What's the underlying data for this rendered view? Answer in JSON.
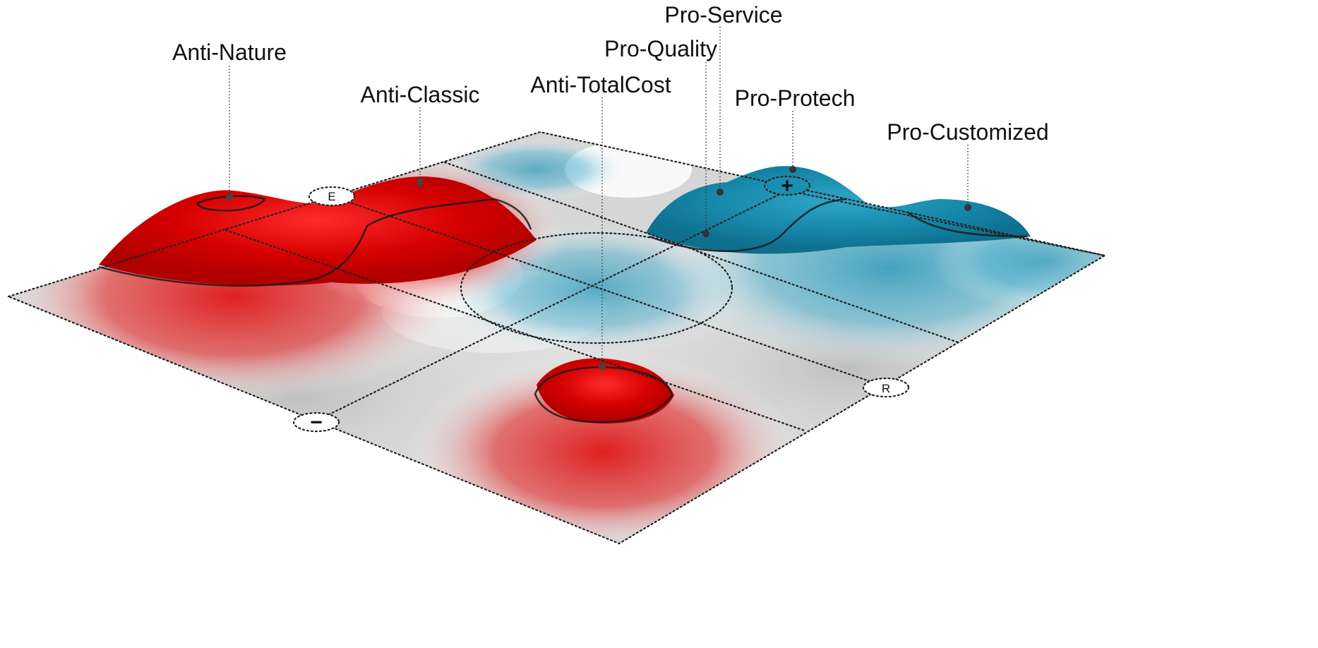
{
  "colors": {
    "anti": "#d90000",
    "pro": "#1b92b4",
    "neutral": "#c8c8c8"
  },
  "peaks": [
    {
      "key": "anti_nature",
      "label": "Anti-Nature"
    },
    {
      "key": "anti_classic",
      "label": "Anti-Classic"
    },
    {
      "key": "anti_totalcost",
      "label": "Anti-TotalCost"
    },
    {
      "key": "pro_quality",
      "label": "Pro-Quality"
    },
    {
      "key": "pro_service",
      "label": "Pro-Service"
    },
    {
      "key": "pro_protech",
      "label": "Pro-Protech"
    },
    {
      "key": "pro_customized",
      "label": "Pro-Customized"
    }
  ],
  "axes": {
    "e_label": "E",
    "r_label": "R",
    "plus_label": "+",
    "minus_label": "−"
  }
}
